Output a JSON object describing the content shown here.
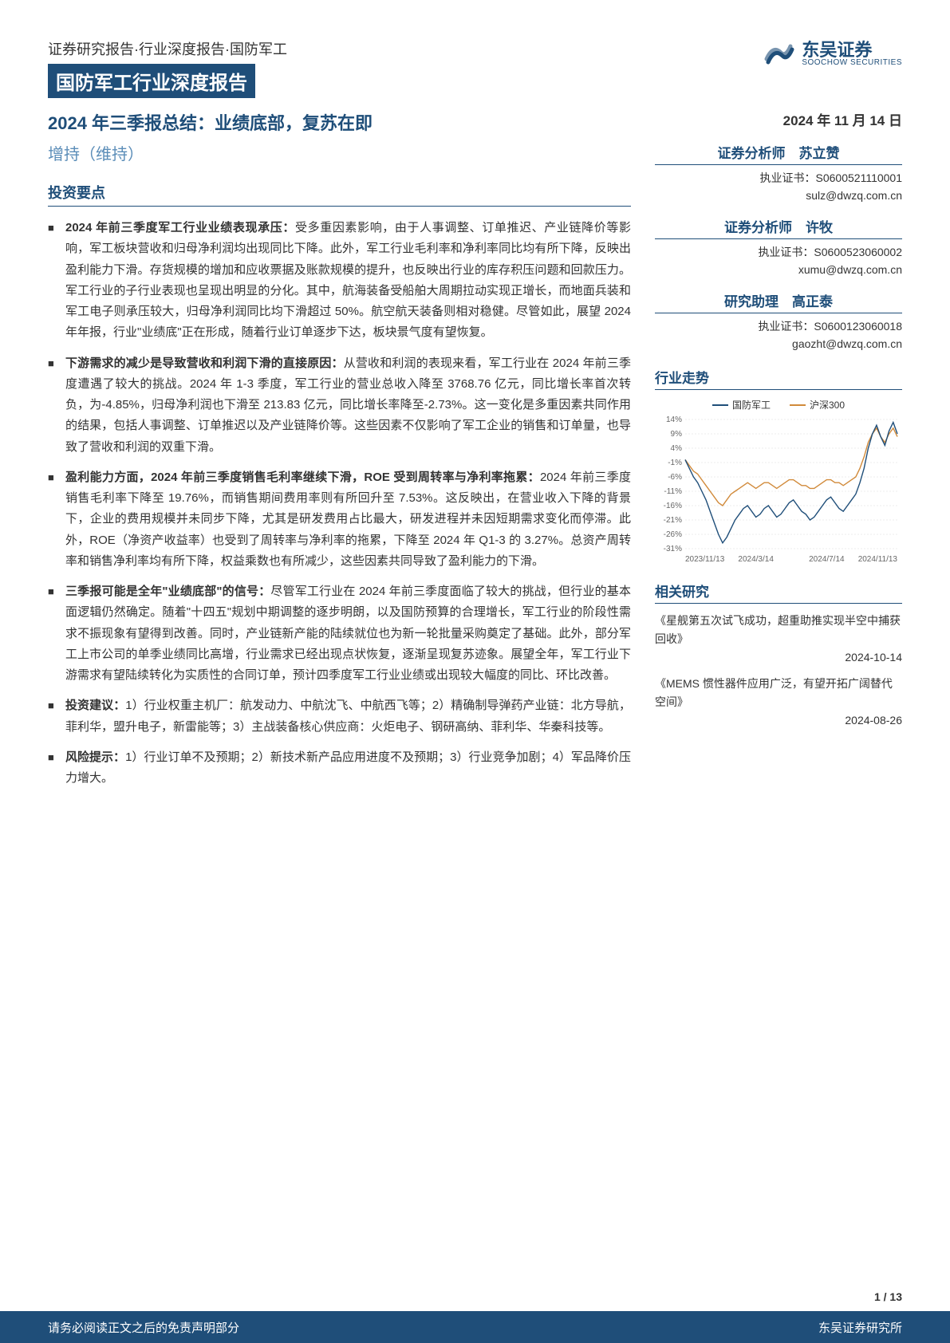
{
  "breadcrumb": "证券研究报告·行业深度报告·国防军工",
  "title_bar": "国防军工行业深度报告",
  "logo": {
    "cn": "东吴证券",
    "en": "SOOCHOW SECURITIES"
  },
  "main_title": "2024 年三季报总结：业绩底部，复苏在即",
  "rating": "增持（维持）",
  "date": "2024 年 11 月 14 日",
  "section_head": "投资要点",
  "bullets": [
    {
      "lead": "2024 年前三季度军工行业业绩表现承压：",
      "body": "受多重因素影响，由于人事调整、订单推迟、产业链降价等影响，军工板块营收和归母净利润均出现同比下降。此外，军工行业毛利率和净利率同比均有所下降，反映出盈利能力下滑。存货规模的增加和应收票据及账款规模的提升，也反映出行业的库存积压问题和回款压力。军工行业的子行业表现也呈现出明显的分化。其中，航海装备受船舶大周期拉动实现正增长，而地面兵装和军工电子则承压较大，归母净利润同比均下滑超过 50%。航空航天装备则相对稳健。尽管如此，展望 2024 年年报，行业\"业绩底\"正在形成，随着行业订单逐步下达，板块景气度有望恢复。"
    },
    {
      "lead": "下游需求的减少是导致营收和利润下滑的直接原因：",
      "body": "从营收和利润的表现来看，军工行业在 2024 年前三季度遭遇了较大的挑战。2024 年 1-3 季度，军工行业的营业总收入降至 3768.76 亿元，同比增长率首次转负，为-4.85%，归母净利润也下滑至 213.83 亿元，同比增长率降至-2.73%。这一变化是多重因素共同作用的结果，包括人事调整、订单推迟以及产业链降价等。这些因素不仅影响了军工企业的销售和订单量，也导致了营收和利润的双重下滑。"
    },
    {
      "lead": "盈利能力方面，2024 年前三季度销售毛利率继续下滑，ROE 受到周转率与净利率拖累：",
      "body": "2024 年前三季度销售毛利率下降至 19.76%，而销售期间费用率则有所回升至 7.53%。这反映出，在营业收入下降的背景下，企业的费用规模并未同步下降，尤其是研发费用占比最大，研发进程并未因短期需求变化而停滞。此外，ROE（净资产收益率）也受到了周转率与净利率的拖累，下降至 2024 年 Q1-3 的 3.27%。总资产周转率和销售净利率均有所下降，权益乘数也有所减少，这些因素共同导致了盈利能力的下滑。"
    },
    {
      "lead": "三季报可能是全年\"业绩底部\"的信号：",
      "body": "尽管军工行业在 2024 年前三季度面临了较大的挑战，但行业的基本面逻辑仍然确定。随着\"十四五\"规划中期调整的逐步明朗，以及国防预算的合理增长，军工行业的阶段性需求不振现象有望得到改善。同时，产业链新产能的陆续就位也为新一轮批量采购奠定了基础。此外，部分军工上市公司的单季业绩同比高增，行业需求已经出现点状恢复，逐渐呈现复苏迹象。展望全年，军工行业下游需求有望陆续转化为实质性的合同订单，预计四季度军工行业业绩或出现较大幅度的同比、环比改善。"
    },
    {
      "lead": "投资建议：",
      "body": "1）行业权重主机厂：航发动力、中航沈飞、中航西飞等；2）精确制导弹药产业链：北方导航，菲利华，盟升电子，新雷能等；3）主战装备核心供应商：火炬电子、钢研高纳、菲利华、华秦科技等。"
    },
    {
      "lead": "风险提示：",
      "body": "1）行业订单不及预期；2）新技术新产品应用进度不及预期；3）行业竞争加剧；4）军品降价压力增大。"
    }
  ],
  "analysts": [
    {
      "role": "证券分析师　苏立赞",
      "cert_label": "执业证书：",
      "cert": "S0600521110001",
      "email": "sulz@dwzq.com.cn"
    },
    {
      "role": "证券分析师　许牧",
      "cert_label": "执业证书：",
      "cert": "S0600523060002",
      "email": "xumu@dwzq.com.cn"
    },
    {
      "role": "研究助理　高正泰",
      "cert_label": "执业证书：",
      "cert": "S0600123060018",
      "email": "gaozht@dwzq.com.cn"
    }
  ],
  "trend_head": "行业走势",
  "chart": {
    "type": "line",
    "series": [
      {
        "name": "国防军工",
        "color": "#1f4e79"
      },
      {
        "name": "沪深300",
        "color": "#d18a3a"
      }
    ],
    "y_ticks": [
      "14%",
      "9%",
      "4%",
      "-1%",
      "-6%",
      "-11%",
      "-16%",
      "-21%",
      "-26%",
      "-31%"
    ],
    "y_values": [
      14,
      9,
      4,
      -1,
      -6,
      -11,
      -16,
      -21,
      -26,
      -31
    ],
    "ylim": [
      -31,
      14
    ],
    "x_ticks": [
      "2023/11/13",
      "2024/3/14",
      "2024/7/14",
      "2024/11/13"
    ],
    "background": "#ffffff",
    "grid_color": "#dddddd",
    "line_width": 1.4,
    "tick_fontsize": 10,
    "legend_fontsize": 12,
    "data_A": [
      0,
      -3,
      -6,
      -8,
      -11,
      -14,
      -18,
      -22,
      -26,
      -29,
      -27,
      -24,
      -21,
      -19,
      -17,
      -16,
      -18,
      -20,
      -19,
      -17,
      -16,
      -18,
      -20,
      -19,
      -17,
      -15,
      -14,
      -16,
      -18,
      -19,
      -21,
      -20,
      -18,
      -16,
      -14,
      -13,
      -15,
      -17,
      -18,
      -16,
      -14,
      -12,
      -8,
      -3,
      4,
      9,
      12,
      8,
      5,
      10,
      13,
      9
    ],
    "data_B": [
      0,
      -2,
      -4,
      -5,
      -7,
      -9,
      -11,
      -13,
      -15,
      -16,
      -14,
      -12,
      -11,
      -10,
      -9,
      -8,
      -9,
      -10,
      -9,
      -8,
      -8,
      -9,
      -10,
      -9,
      -8,
      -7,
      -7,
      -8,
      -9,
      -9,
      -10,
      -10,
      -9,
      -8,
      -7,
      -7,
      -8,
      -8,
      -9,
      -8,
      -7,
      -6,
      -3,
      1,
      6,
      9,
      11,
      8,
      6,
      9,
      11,
      8
    ]
  },
  "related_head": "相关研究",
  "related": [
    {
      "title": "《星舰第五次试飞成功，超重助推实现半空中捕获回收》",
      "date": "2024-10-14"
    },
    {
      "title": "《MEMS 惯性器件应用广泛，有望开拓广阔替代空间》",
      "date": "2024-08-26"
    }
  ],
  "page_num": "1 / 13",
  "footer_left": "请务必阅读正文之后的免责声明部分",
  "footer_right": "东吴证券研究所"
}
